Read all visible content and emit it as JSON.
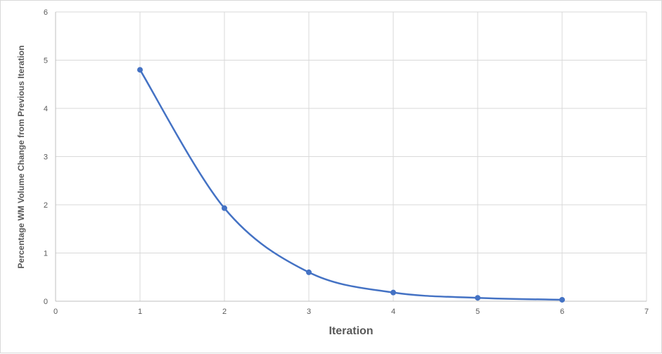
{
  "chart_data": {
    "type": "scatter",
    "title": "",
    "xlabel": "Iteration",
    "ylabel": "Percentage WM Volume Change from Previous Iteration",
    "xlim": [
      0,
      7
    ],
    "ylim": [
      0,
      6
    ],
    "x_ticks": [
      "0",
      "1",
      "2",
      "3",
      "4",
      "5",
      "6",
      "7"
    ],
    "y_ticks": [
      "0",
      "1",
      "2",
      "3",
      "4",
      "5",
      "6"
    ],
    "grid": true,
    "smooth_line": true,
    "legend": "none",
    "series": [
      {
        "color": "#4472C4",
        "x": [
          1,
          2,
          3,
          4,
          5,
          6
        ],
        "y": [
          4.8,
          1.93,
          0.6,
          0.18,
          0.07,
          0.03
        ]
      }
    ]
  }
}
